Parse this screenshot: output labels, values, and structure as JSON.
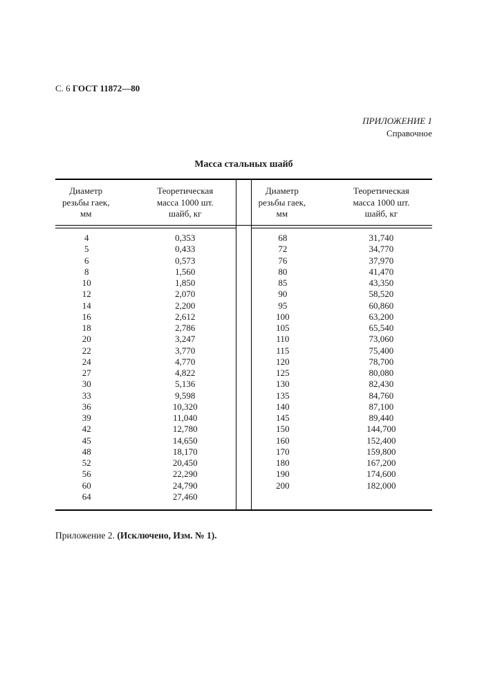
{
  "header": {
    "page_prefix": "С. 6 ",
    "standard": "ГОСТ 11872—80"
  },
  "appendix": {
    "title": "ПРИЛОЖЕНИЕ 1",
    "subtitle": "Справочное"
  },
  "table": {
    "title": "Масса стальных шайб",
    "column_header_diameter_l1": "Диаметр",
    "column_header_diameter_l2": "резьбы гаек,",
    "column_header_diameter_l3": "мм",
    "column_header_mass_l1": "Теоретическая",
    "column_header_mass_l2": "масса 1000 шт.",
    "column_header_mass_l3": "шайб, кг",
    "left": [
      {
        "d": "4",
        "m": "0,353"
      },
      {
        "d": "5",
        "m": "0,433"
      },
      {
        "d": "6",
        "m": "0,573"
      },
      {
        "d": "8",
        "m": "1,560"
      },
      {
        "d": "10",
        "m": "1,850"
      },
      {
        "d": "12",
        "m": "2,070"
      },
      {
        "d": "14",
        "m": "2,200"
      },
      {
        "d": "16",
        "m": "2,612"
      },
      {
        "d": "18",
        "m": "2,786"
      },
      {
        "d": "20",
        "m": "3,247"
      },
      {
        "d": "22",
        "m": "3,770"
      },
      {
        "d": "24",
        "m": "4,770"
      },
      {
        "d": "27",
        "m": "4,822"
      },
      {
        "d": "30",
        "m": "5,136"
      },
      {
        "d": "33",
        "m": "9,598"
      },
      {
        "d": "36",
        "m": "10,320"
      },
      {
        "d": "39",
        "m": "11,040"
      },
      {
        "d": "42",
        "m": "12,780"
      },
      {
        "d": "45",
        "m": "14,650"
      },
      {
        "d": "48",
        "m": "18,170"
      },
      {
        "d": "52",
        "m": "20,450"
      },
      {
        "d": "56",
        "m": "22,290"
      },
      {
        "d": "60",
        "m": "24,790"
      },
      {
        "d": "64",
        "m": "27,460"
      }
    ],
    "right": [
      {
        "d": "68",
        "m": "31,740"
      },
      {
        "d": "72",
        "m": "34,770"
      },
      {
        "d": "76",
        "m": "37,970"
      },
      {
        "d": "80",
        "m": "41,470"
      },
      {
        "d": "85",
        "m": "43,350"
      },
      {
        "d": "90",
        "m": "58,520"
      },
      {
        "d": "95",
        "m": "60,860"
      },
      {
        "d": "100",
        "m": "63,200"
      },
      {
        "d": "105",
        "m": "65,540"
      },
      {
        "d": "110",
        "m": "73,060"
      },
      {
        "d": "115",
        "m": "75,400"
      },
      {
        "d": "120",
        "m": "78,700"
      },
      {
        "d": "125",
        "m": "80,080"
      },
      {
        "d": "130",
        "m": "82,430"
      },
      {
        "d": "135",
        "m": "84,760"
      },
      {
        "d": "140",
        "m": "87,100"
      },
      {
        "d": "145",
        "m": "89,440"
      },
      {
        "d": "150",
        "m": "144,700"
      },
      {
        "d": "160",
        "m": "152,400"
      },
      {
        "d": "170",
        "m": "159,800"
      },
      {
        "d": "180",
        "m": "167,200"
      },
      {
        "d": "190",
        "m": "174,600"
      },
      {
        "d": "200",
        "m": "182,000"
      }
    ]
  },
  "footnote": {
    "prefix": "Приложение 2. ",
    "bold": "(Исключено, Изм. № 1)."
  },
  "style": {
    "text_color": "#1a1a1a",
    "background_color": "#ffffff",
    "rule_color": "#000000",
    "body_fontsize_pt": 10,
    "title_fontsize_pt": 11,
    "font_family": "Times New Roman"
  }
}
